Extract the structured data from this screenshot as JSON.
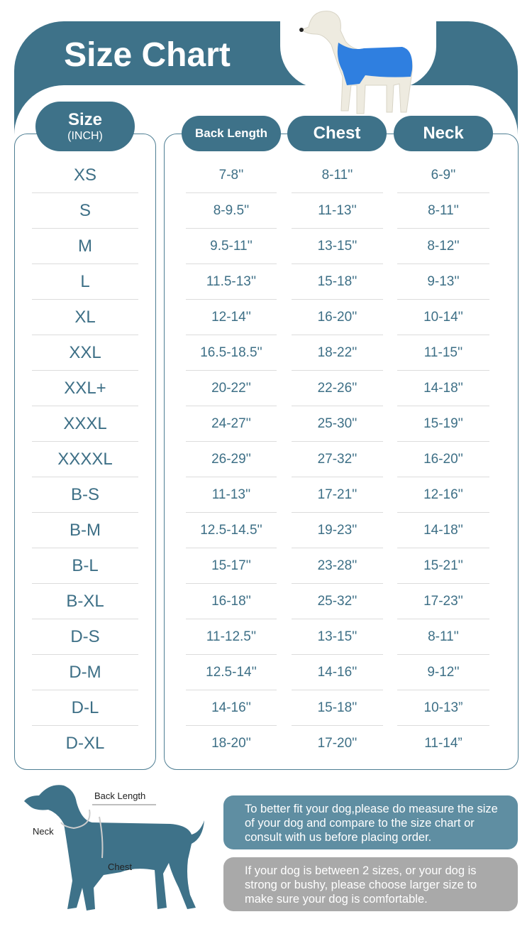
{
  "title": "Size Chart",
  "headers": {
    "size": "Size",
    "size_unit": "(INCH)",
    "back_length": "Back Length",
    "chest": "Chest",
    "neck": "Neck"
  },
  "rows": [
    {
      "size": "XS",
      "back": "7-8''",
      "chest": "8-11''",
      "neck": "6-9''"
    },
    {
      "size": "S",
      "back": "8-9.5''",
      "chest": "11-13''",
      "neck": "8-11''"
    },
    {
      "size": "M",
      "back": "9.5-11''",
      "chest": "13-15''",
      "neck": "8-12''"
    },
    {
      "size": "L",
      "back": "11.5-13''",
      "chest": "15-18''",
      "neck": "9-13''"
    },
    {
      "size": "XL",
      "back": "12-14''",
      "chest": "16-20''",
      "neck": "10-14''"
    },
    {
      "size": "XXL",
      "back": "16.5-18.5''",
      "chest": "18-22''",
      "neck": "11-15''"
    },
    {
      "size": "XXL+",
      "back": "20-22''",
      "chest": "22-26''",
      "neck": "14-18''"
    },
    {
      "size": "XXXL",
      "back": "24-27''",
      "chest": "25-30''",
      "neck": "15-19''"
    },
    {
      "size": "XXXXL",
      "back": "26-29''",
      "chest": "27-32''",
      "neck": "16-20''"
    },
    {
      "size": "B-S",
      "back": "11-13''",
      "chest": "17-21''",
      "neck": "12-16''"
    },
    {
      "size": "B-M",
      "back": "12.5-14.5''",
      "chest": "19-23''",
      "neck": "14-18''"
    },
    {
      "size": "B-L",
      "back": "15-17''",
      "chest": "23-28''",
      "neck": "15-21''"
    },
    {
      "size": "B-XL",
      "back": "16-18''",
      "chest": "25-32''",
      "neck": "17-23''"
    },
    {
      "size": "D-S",
      "back": "11-12.5''",
      "chest": "13-15''",
      "neck": "8-11''"
    },
    {
      "size": "D-M",
      "back": "12.5-14''",
      "chest": "14-16''",
      "neck": "9-12''"
    },
    {
      "size": "D-L",
      "back": "14-16''",
      "chest": "15-18''",
      "neck": "10-13”"
    },
    {
      "size": "D-XL",
      "back": "18-20''",
      "chest": "17-20''",
      "neck": "11-14”"
    }
  ],
  "diagram": {
    "back_length": "Back  Length",
    "neck": "Neck",
    "chest": "Chest"
  },
  "notes": [
    "To better fit your dog,please do measure the size of your dog and compare to the size chart or consult with us before placing order.",
    "If your dog is between 2 sizes, or your dog is strong or bushy, please choose larger size to make sure your dog is comfortable."
  ],
  "colors": {
    "teal": "#3e7289",
    "note_teal": "#5f8ea2",
    "note_grey": "#a9a9a9",
    "shirt": "#2f7fe0"
  }
}
